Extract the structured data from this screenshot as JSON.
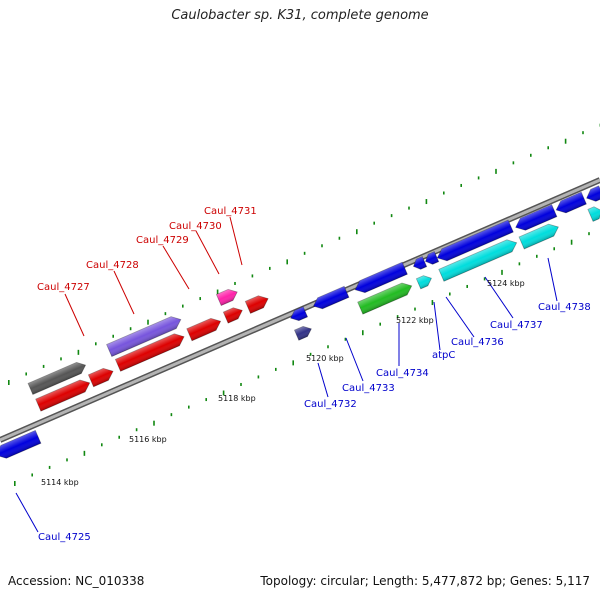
{
  "title": "Caulobacter sp. K31, complete genome",
  "accession": "Accession: NC_010338",
  "topology": "Topology: circular; Length: 5,477,872 bp; Genes: 5,117",
  "colors": {
    "forward_label": "#cc0000",
    "reverse_label": "#0000cc",
    "backbone": "#999999",
    "tick": "#118811"
  },
  "kbp_labels": [
    "5114 kbp",
    "5116 kbp",
    "5118 kbp",
    "5120 kbp",
    "5122 kbp",
    "5124 kbp"
  ],
  "gene_labels": {
    "forward": [
      "Caul_4727",
      "Caul_4728",
      "Caul_4729",
      "Caul_4730",
      "Caul_4731"
    ],
    "reverse": [
      "Caul_4725",
      "Caul_4732",
      "Caul_4733",
      "Caul_4734",
      "atpC",
      "Caul_4736",
      "Caul_4737",
      "Caul_4738"
    ]
  }
}
